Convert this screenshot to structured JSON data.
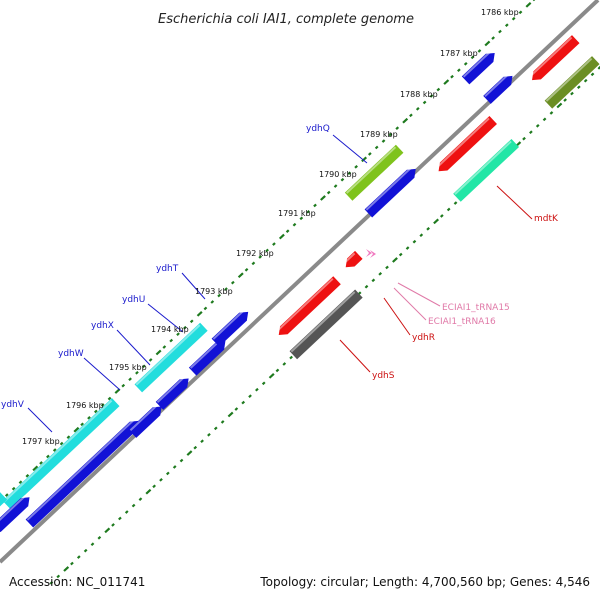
{
  "title": "Escherichia coli IAI1, complete genome",
  "footer": {
    "accession": "Accession: NC_011741",
    "summary": "Topology: circular; Length: 4,700,560 bp; Genes: 4,546"
  },
  "colors": {
    "backbone": "#8a8a8a",
    "tick_dots": "#1e7a1e",
    "label_blue": "#1a1acc",
    "label_red": "#cc1111",
    "label_pink": "#e07aa8",
    "cds_blue": "#1212d6",
    "cds_cyan": "#22dddd",
    "cds_red": "#ee1111",
    "cds_olive": "#6b8e23",
    "cds_green": "#7fc31c",
    "cds_teal": "#22e6a6",
    "cds_gray": "#555555",
    "trna_pink": "#f07ac0"
  },
  "kbp_ticks": [
    {
      "label": "1786 kbp"
    },
    {
      "label": "1787 kbp"
    },
    {
      "label": "1788 kbp"
    },
    {
      "label": "1789 kbp"
    },
    {
      "label": "1790 kbp"
    },
    {
      "label": "1791 kbp"
    },
    {
      "label": "1792 kbp"
    },
    {
      "label": "1793 kbp"
    },
    {
      "label": "1794 kbp"
    },
    {
      "label": "1795 kbp"
    },
    {
      "label": "1796 kbp"
    },
    {
      "label": "1797 kbp"
    }
  ],
  "gene_labels": [
    {
      "name": "ydhQ",
      "strand": "forward"
    },
    {
      "name": "ydhT",
      "strand": "forward"
    },
    {
      "name": "ydhU",
      "strand": "forward"
    },
    {
      "name": "ydhX",
      "strand": "forward"
    },
    {
      "name": "ydhW",
      "strand": "forward"
    },
    {
      "name": "ydhV",
      "strand": "forward"
    },
    {
      "name": "mdtK",
      "strand": "reverse"
    },
    {
      "name": "ydhR",
      "strand": "reverse"
    },
    {
      "name": "ydhS",
      "strand": "reverse"
    },
    {
      "name": "ECIAI1_tRNA15",
      "strand": "reverse"
    },
    {
      "name": "ECIAI1_tRNA16",
      "strand": "reverse"
    }
  ]
}
